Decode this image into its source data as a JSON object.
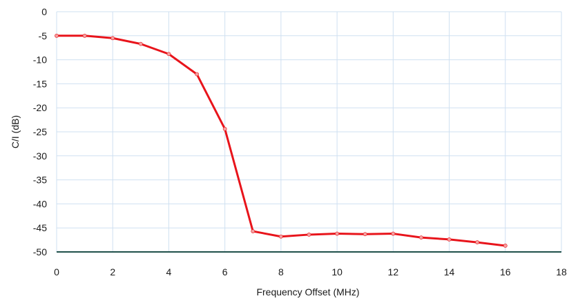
{
  "chart_data": {
    "type": "line",
    "title": "",
    "xlabel": "Frequency Offset (MHz)",
    "ylabel": "C/I (dB)",
    "xlim": [
      0,
      18
    ],
    "ylim": [
      -50,
      0
    ],
    "x_ticks": [
      "0",
      "2",
      "4",
      "6",
      "8",
      "10",
      "12",
      "14",
      "16",
      "18"
    ],
    "y_ticks": [
      "0",
      "-5",
      "-10",
      "-15",
      "-20",
      "-25",
      "-30",
      "-35",
      "-40",
      "-45",
      "-50"
    ],
    "grid": true,
    "legend": "none",
    "series": [
      {
        "color": "#e8141b",
        "marker_color": "#f4a0a0",
        "x": [
          0,
          1,
          2,
          3,
          4,
          5,
          6,
          7,
          8,
          9,
          10,
          11,
          12,
          13,
          14,
          15,
          16
        ],
        "y": [
          -5.0,
          -5.0,
          -5.5,
          -6.7,
          -8.8,
          -13.0,
          -24.4,
          -45.7,
          -46.8,
          -46.4,
          -46.2,
          -46.3,
          -46.2,
          -47.0,
          -47.4,
          -48.0,
          -48.7
        ]
      }
    ]
  },
  "style": {
    "grid_color": "#cfe0f1",
    "axis_color": "#1f4f4a"
  }
}
